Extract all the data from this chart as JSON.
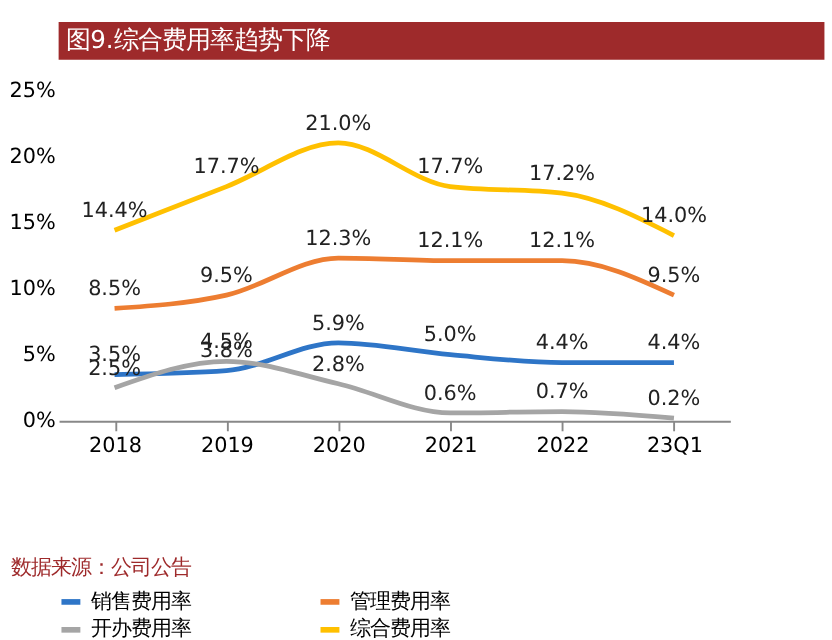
{
  "chart_data": {
    "type": "line",
    "title": "图9.综合费用率趋势下降",
    "categories": [
      "2018",
      "2019",
      "2020",
      "2021",
      "2022",
      "23Q1"
    ],
    "series": [
      {
        "name": "销售费用率",
        "color": "#2e75c7",
        "values": [
          3.5,
          3.8,
          5.9,
          5.0,
          4.4,
          4.4
        ],
        "value_labels": [
          "3.5%",
          "3.8%",
          "5.9%",
          "5.0%",
          "4.4%",
          "4.4%"
        ]
      },
      {
        "name": "管理费用率",
        "color": "#ed7d31",
        "values": [
          8.5,
          9.5,
          12.3,
          12.1,
          12.1,
          9.5
        ],
        "value_labels": [
          "8.5%",
          "9.5%",
          "12.3%",
          "12.1%",
          "12.1%",
          "9.5%"
        ]
      },
      {
        "name": "开办费用率",
        "color": "#a5a5a5",
        "values": [
          2.5,
          4.5,
          2.8,
          0.6,
          0.7,
          0.2
        ],
        "value_labels": [
          "2.5%",
          "4.5%",
          "2.8%",
          "0.6%",
          "0.7%",
          "0.2%"
        ]
      },
      {
        "name": "综合费用率",
        "color": "#ffc000",
        "values": [
          14.4,
          17.7,
          21.0,
          17.7,
          17.2,
          14.0
        ],
        "value_labels": [
          "14.4%",
          "17.7%",
          "21.0%",
          "17.7%",
          "17.2%",
          "14.0%"
        ]
      }
    ],
    "ylim": [
      0,
      25
    ],
    "yticks": [
      {
        "value": 0,
        "label": "0%"
      },
      {
        "value": 5,
        "label": "5%"
      },
      {
        "value": 10,
        "label": "10%"
      },
      {
        "value": 15,
        "label": "15%"
      },
      {
        "value": 20,
        "label": "20%"
      },
      {
        "value": 25,
        "label": "25%"
      }
    ],
    "grid": false,
    "legend": "bottom",
    "marker": "none",
    "line_style": "solid",
    "annotations": [
      "数据来源：公司公告"
    ]
  }
}
